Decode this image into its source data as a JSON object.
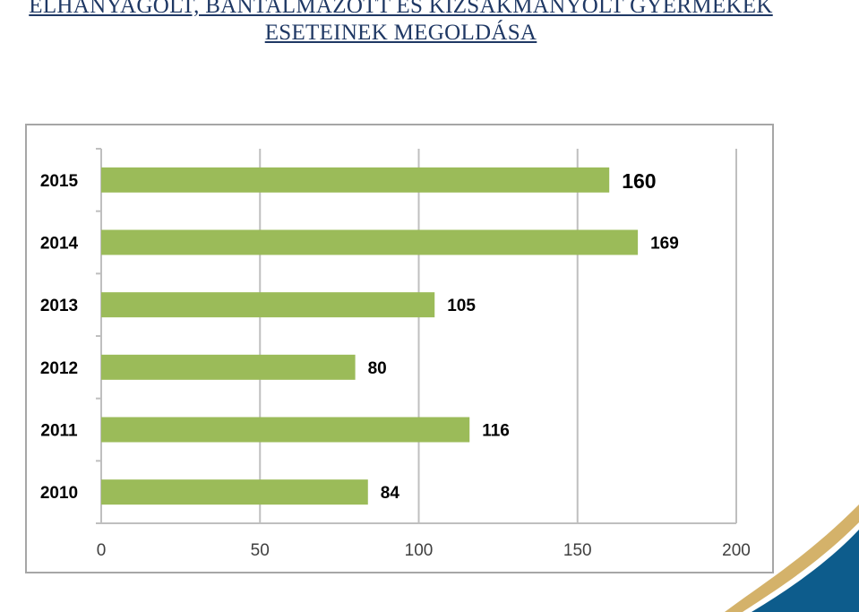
{
  "page": {
    "title_line1": "ELHANYAGOLT, BÁNTALMAZOTT ÉS KIZSÁKMÁNYOLT GYERMEKEK",
    "title_line2": "ESETEINEK MEGOLDÁSA"
  },
  "colors": {
    "title": "#1f3864",
    "bar": "#9bbb59",
    "grid": "#bfbfbf",
    "frame": "#a6a6a6",
    "corner_gold": "#d4b26a",
    "corner_blue": "#0d5c8c"
  },
  "chart_data": {
    "type": "bar",
    "orientation": "horizontal",
    "categories": [
      "2015",
      "2014",
      "2013",
      "2012",
      "2011",
      "2010"
    ],
    "values": [
      160,
      169,
      105,
      80,
      116,
      84
    ],
    "data_labels": [
      "160",
      "169",
      "105",
      "80",
      "116",
      "84"
    ],
    "xlim": [
      0,
      200
    ],
    "xticks": [
      "0",
      "50",
      "100",
      "150",
      "200"
    ],
    "grid": true,
    "legend": "none"
  }
}
